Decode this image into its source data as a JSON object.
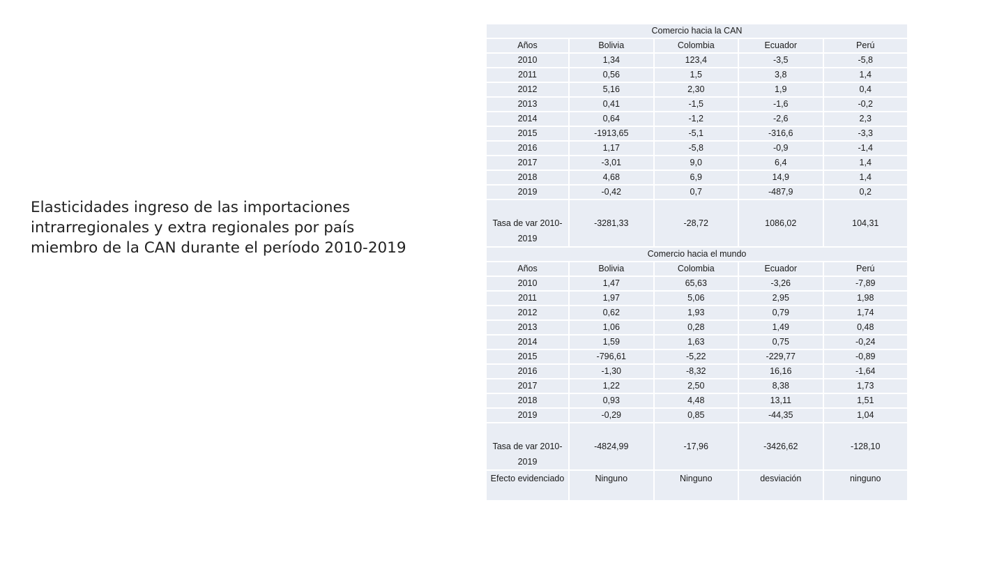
{
  "title_lines": [
    "Elasticidades ingreso de las importaciones",
    "intrarregionales y extra regionales por país",
    "miembro de la CAN durante el período 2010-2019"
  ],
  "table": {
    "can": {
      "section_title": "Comercio hacia la CAN",
      "header": [
        "Años",
        "Bolivia",
        "Colombia",
        "Ecuador",
        "Perú"
      ],
      "rows": [
        [
          "2010",
          "1,34",
          "123,4",
          "-3,5",
          "-5,8"
        ],
        [
          "2011",
          "0,56",
          "1,5",
          "3,8",
          "1,4"
        ],
        [
          "2012",
          "5,16",
          "2,30",
          "1,9",
          "0,4"
        ],
        [
          "2013",
          "0,41",
          "-1,5",
          "-1,6",
          "-0,2"
        ],
        [
          "2014",
          "0,64",
          "-1,2",
          "-2,6",
          "2,3"
        ],
        [
          "2015",
          "-1913,65",
          "-5,1",
          "-316,6",
          "-3,3"
        ],
        [
          "2016",
          "1,17",
          "-5,8",
          "-0,9",
          "-1,4"
        ],
        [
          "2017",
          "-3,01",
          "9,0",
          "6,4",
          "1,4"
        ],
        [
          "2018",
          "4,68",
          "6,9",
          "14,9",
          "1,4"
        ],
        [
          "2019",
          "-0,42",
          "0,7",
          "-487,9",
          "0,2"
        ]
      ],
      "total": [
        "Tasa de var 2010-2019",
        "-3281,33",
        "-28,72",
        "1086,02",
        "104,31"
      ]
    },
    "world": {
      "section_title": "Comercio hacia el mundo",
      "header": [
        "Años",
        "Bolivia",
        "Colombia",
        "Ecuador",
        "Perú"
      ],
      "rows": [
        [
          "2010",
          "1,47",
          "65,63",
          "-3,26",
          "-7,89"
        ],
        [
          "2011",
          "1,97",
          "5,06",
          "2,95",
          "1,98"
        ],
        [
          "2012",
          "0,62",
          "1,93",
          "0,79",
          "1,74"
        ],
        [
          "2013",
          "1,06",
          "0,28",
          "1,49",
          "0,48"
        ],
        [
          "2014",
          "1,59",
          "1,63",
          "0,75",
          "-0,24"
        ],
        [
          "2015",
          "-796,61",
          "-5,22",
          "-229,77",
          "-0,89"
        ],
        [
          "2016",
          "-1,30",
          "-8,32",
          "16,16",
          "-1,64"
        ],
        [
          "2017",
          "1,22",
          "2,50",
          "8,38",
          "1,73"
        ],
        [
          "2018",
          "0,93",
          "4,48",
          "13,11",
          "1,51"
        ],
        [
          "2019",
          "-0,29",
          "0,85",
          "-44,35",
          "1,04"
        ]
      ],
      "total": [
        "Tasa de var 2010-2019",
        "-4824,99",
        "-17,96",
        "-3426,62",
        "-128,10"
      ],
      "effect": [
        "Efecto evidenciado",
        "Ninguno",
        "Ninguno",
        "desviación",
        "ninguno"
      ]
    }
  }
}
